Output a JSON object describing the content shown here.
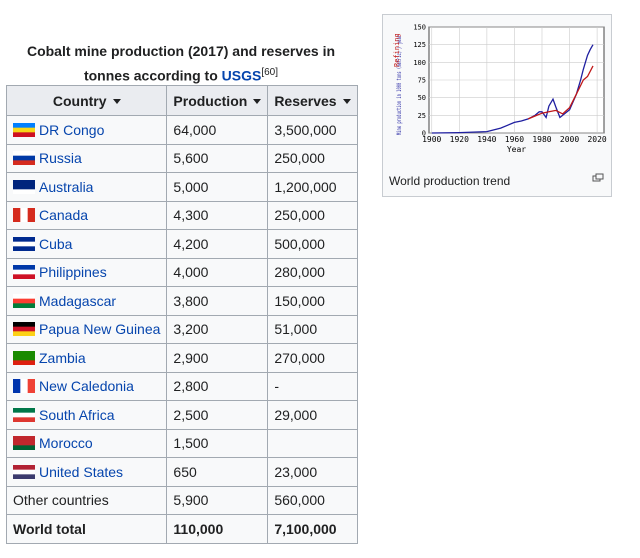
{
  "table": {
    "caption": {
      "text": "Cobalt mine production (2017) and reserves in tonnes according to",
      "link": "USGS",
      "ref": "[60]"
    },
    "header": [
      "Country",
      "Production",
      "Reserves"
    ],
    "rows": [
      [
        "DR Congo",
        "64,000",
        "3,500,000"
      ],
      [
        "Russia",
        "5,600",
        "250,000"
      ],
      [
        "Australia",
        "5,000",
        "1,200,000"
      ],
      [
        "Canada",
        "4,300",
        "250,000"
      ],
      [
        "Cuba",
        "4,200",
        "500,000"
      ],
      [
        "Philippines",
        "4,000",
        "280,000"
      ],
      [
        "Madagascar",
        "3,800",
        "150,000"
      ],
      [
        "Papua New Guinea",
        "3,200",
        "51,000"
      ],
      [
        "Zambia",
        "2,900",
        "270,000"
      ],
      [
        "New Caledonia",
        "2,800",
        "-"
      ],
      [
        "South Africa",
        "2,500",
        "29,000"
      ],
      [
        "Morocco",
        "1,500",
        null
      ],
      [
        "United States",
        "650",
        "23,000"
      ],
      [
        "Other countries",
        "5,900",
        "560,000"
      ],
      [
        "World total",
        "110,000",
        "7,100,000"
      ]
    ]
  },
  "figure": {
    "caption": "World production trend",
    "chart": {
      "type": "line",
      "xlabel": "Year",
      "ylabel": "Mine production in 1000 tons (metric) / year",
      "ylabel2": "Refining",
      "xlim": [
        1898,
        2025
      ],
      "ylim": [
        0,
        150
      ],
      "xticks": [
        1900,
        1920,
        1940,
        1960,
        1980,
        2000,
        2020
      ],
      "yticks": [
        0,
        25,
        50,
        75,
        100,
        125,
        150
      ],
      "grid": true,
      "series": [
        {
          "color": "#1f1fa0",
          "x": [
            1900,
            1920,
            1940,
            1950,
            1960,
            1965,
            1970,
            1975,
            1978,
            1980,
            1983,
            1985,
            1988,
            1990,
            1993,
            1995,
            2000,
            2005,
            2008,
            2010,
            2013,
            2015,
            2017
          ],
          "values": [
            0,
            0.5,
            2,
            7,
            15,
            17,
            20,
            25,
            30,
            30,
            22,
            38,
            48,
            37,
            22,
            25,
            33,
            55,
            75,
            90,
            110,
            118,
            125
          ]
        },
        {
          "color": "#c01818",
          "x": [
            1970,
            1975,
            1980,
            1985,
            1990,
            1995,
            2000,
            2005,
            2010,
            2013,
            2017
          ],
          "values": [
            20,
            24,
            28,
            30,
            32,
            27,
            36,
            55,
            75,
            80,
            95
          ]
        }
      ]
    }
  }
}
